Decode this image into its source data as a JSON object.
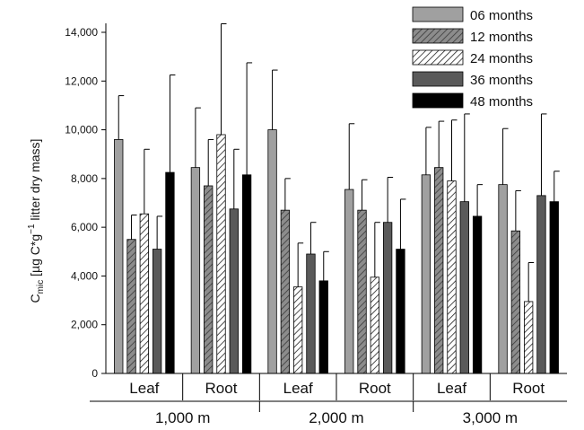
{
  "chart_data": {
    "type": "bar",
    "ylabel": {
      "symbol": "C",
      "subscript": "mic",
      "unit_pre": " [µg C*g",
      "superscript": "−1",
      "unit_post": " litter dry mass]"
    },
    "ylim": [
      0,
      14000
    ],
    "yticks": [
      "0",
      "2,000",
      "4,000",
      "6,000",
      "8,000",
      "10,000",
      "12,000",
      "14,000"
    ],
    "ytick_values": [
      0,
      2000,
      4000,
      6000,
      8000,
      10000,
      12000,
      14000
    ],
    "groups": [
      "1,000 m",
      "2,000 m",
      "3,000 m"
    ],
    "categories": [
      "Leaf",
      "Root",
      "Leaf",
      "Root",
      "Leaf",
      "Root"
    ],
    "series": [
      {
        "name": "06 months",
        "color": "#a0a0a0",
        "pattern": "solid",
        "values": [
          9600,
          8450,
          10000,
          7550,
          8150,
          7750
        ],
        "errors": [
          1800,
          2450,
          2450,
          2700,
          1950,
          2300
        ]
      },
      {
        "name": "12 months",
        "color": "#8c8c8c",
        "pattern": "hatch",
        "values": [
          5500,
          7700,
          6700,
          6700,
          8450,
          5850
        ],
        "errors": [
          1000,
          1900,
          1300,
          1250,
          1900,
          1650
        ]
      },
      {
        "name": "24 months",
        "color": "#ffffff",
        "pattern": "hatch-light",
        "values": [
          6550,
          9800,
          3550,
          3950,
          7900,
          2950
        ],
        "errors": [
          2650,
          4550,
          1800,
          2250,
          2500,
          1600
        ]
      },
      {
        "name": "36 months",
        "color": "#5a5a5a",
        "pattern": "solid",
        "values": [
          5100,
          6750,
          4900,
          6200,
          7050,
          7300
        ],
        "errors": [
          1350,
          2450,
          1300,
          1850,
          3600,
          3350
        ]
      },
      {
        "name": "48 months",
        "color": "#000000",
        "pattern": "solid",
        "values": [
          8250,
          8150,
          3800,
          5100,
          6450,
          7050
        ],
        "errors": [
          4000,
          4600,
          1200,
          2050,
          1300,
          1250
        ]
      }
    ],
    "legend_position": "top-right",
    "grid": false
  }
}
